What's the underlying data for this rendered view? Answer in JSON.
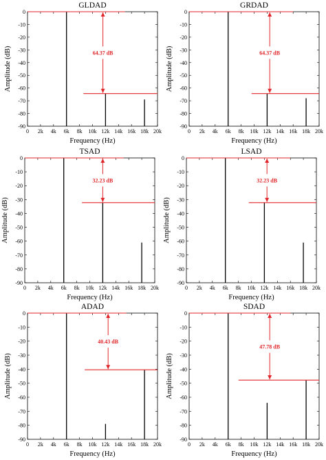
{
  "chart_data": [
    {
      "type": "line",
      "title": "GLDAD",
      "xlabel": "Frequency (Hz)",
      "ylabel": "Amplitude (dB)",
      "xlim": [
        0,
        20000
      ],
      "ylim": [
        -90,
        0
      ],
      "xticks": [
        0,
        2000,
        4000,
        6000,
        8000,
        10000,
        12000,
        14000,
        16000,
        18000,
        20000
      ],
      "xtick_labels": [
        "0",
        "2k",
        "4k",
        "6k",
        "8k",
        "10k",
        "12k",
        "14k",
        "16k",
        "18k",
        "20k"
      ],
      "yticks": [
        0,
        -10,
        -20,
        -30,
        -40,
        -50,
        -60,
        -70,
        -80,
        -90
      ],
      "spectral_lines": [
        {
          "x": 6000,
          "y": 0
        },
        {
          "x": 12000,
          "y": -64.37
        },
        {
          "x": 18000,
          "y": -69
        }
      ],
      "reference_levels": [
        0,
        -64.37
      ],
      "annotation": "64.37 dB"
    },
    {
      "type": "line",
      "title": "GRDAD",
      "xlabel": "Frequency (Hz)",
      "ylabel": "Amplitude (dB)",
      "xlim": [
        0,
        20000
      ],
      "ylim": [
        -90,
        0
      ],
      "xticks": [
        0,
        2000,
        4000,
        6000,
        8000,
        10000,
        12000,
        14000,
        16000,
        18000,
        20000
      ],
      "xtick_labels": [
        "0",
        "2k",
        "4k",
        "6k",
        "8k",
        "10k",
        "12k",
        "14k",
        "16k",
        "18k",
        "20k"
      ],
      "yticks": [
        0,
        -10,
        -20,
        -30,
        -40,
        -50,
        -60,
        -70,
        -80,
        -90
      ],
      "spectral_lines": [
        {
          "x": 6000,
          "y": 0
        },
        {
          "x": 12000,
          "y": -64.37
        },
        {
          "x": 18000,
          "y": -68
        }
      ],
      "reference_levels": [
        0,
        -64.37
      ],
      "annotation": "64.37 dB"
    },
    {
      "type": "line",
      "title": "TSAD",
      "xlabel": "Frequency (Hz)",
      "ylabel": "Amplitude (dB)",
      "xlim": [
        0,
        20000
      ],
      "ylim": [
        -90,
        0
      ],
      "xticks": [
        0,
        2000,
        4000,
        6000,
        8000,
        10000,
        12000,
        14000,
        16000,
        18000,
        20000
      ],
      "xtick_labels": [
        "0",
        "2k",
        "4k",
        "6k",
        "8k",
        "10k",
        "12k",
        "14k",
        "16k",
        "18k",
        "20k"
      ],
      "yticks": [
        0,
        -10,
        -20,
        -30,
        -40,
        -50,
        -60,
        -70,
        -80,
        -90
      ],
      "spectral_lines": [
        {
          "x": 6000,
          "y": 0
        },
        {
          "x": 12000,
          "y": -32.23
        },
        {
          "x": 18000,
          "y": -61
        }
      ],
      "reference_levels": [
        0,
        -32.23
      ],
      "annotation": "32.23 dB"
    },
    {
      "type": "line",
      "title": "LSAD",
      "xlabel": "Frequency (Hz)",
      "ylabel": "Amplitude (dB)",
      "xlim": [
        0,
        20000
      ],
      "ylim": [
        -90,
        0
      ],
      "xticks": [
        0,
        2000,
        4000,
        6000,
        8000,
        10000,
        12000,
        14000,
        16000,
        18000,
        20000
      ],
      "xtick_labels": [
        "0",
        "2k",
        "4k",
        "6k",
        "8k",
        "10k",
        "12k",
        "14k",
        "16k",
        "18k",
        "20k"
      ],
      "yticks": [
        0,
        -10,
        -20,
        -30,
        -40,
        -50,
        -60,
        -70,
        -80,
        -90
      ],
      "spectral_lines": [
        {
          "x": 6000,
          "y": 0
        },
        {
          "x": 12000,
          "y": -32.23
        },
        {
          "x": 18000,
          "y": -61
        }
      ],
      "reference_levels": [
        0,
        -32.23
      ],
      "annotation": "32.23 dB"
    },
    {
      "type": "line",
      "title": "ADAD",
      "xlabel": "Frequency (Hz)",
      "ylabel": "Amplitude (dB)",
      "xlim": [
        0,
        20000
      ],
      "ylim": [
        -90,
        0
      ],
      "xticks": [
        0,
        2000,
        4000,
        6000,
        8000,
        10000,
        12000,
        14000,
        16000,
        18000,
        20000
      ],
      "xtick_labels": [
        "0",
        "2k",
        "4k",
        "6k",
        "8k",
        "10k",
        "12k",
        "14k",
        "16k",
        "18k",
        "20k"
      ],
      "yticks": [
        0,
        -10,
        -20,
        -30,
        -40,
        -50,
        -60,
        -70,
        -80,
        -90
      ],
      "spectral_lines": [
        {
          "x": 6000,
          "y": 0
        },
        {
          "x": 12000,
          "y": -79
        },
        {
          "x": 18000,
          "y": -40.43
        }
      ],
      "reference_levels": [
        0,
        -40.43
      ],
      "annotation": "40.43 dB"
    },
    {
      "type": "line",
      "title": "SDAD",
      "xlabel": "Frequency (Hz)",
      "ylabel": "Amplitude (dB)",
      "xlim": [
        0,
        20000
      ],
      "ylim": [
        -90,
        0
      ],
      "xticks": [
        0,
        2000,
        4000,
        6000,
        8000,
        10000,
        12000,
        14000,
        16000,
        18000,
        20000
      ],
      "xtick_labels": [
        "0",
        "2k",
        "4k",
        "6k",
        "8k",
        "10k",
        "12k",
        "14k",
        "16k",
        "18k",
        "20k"
      ],
      "yticks": [
        0,
        -10,
        -20,
        -30,
        -40,
        -50,
        -60,
        -70,
        -80,
        -90
      ],
      "spectral_lines": [
        {
          "x": 6000,
          "y": 0
        },
        {
          "x": 12000,
          "y": -64
        },
        {
          "x": 18000,
          "y": -47.78
        }
      ],
      "reference_levels": [
        0,
        -47.78
      ],
      "annotation": "47.78 dB"
    }
  ],
  "colors": {
    "annotation": "#e0262a",
    "spectrum": "#000000",
    "axes": "#000000"
  }
}
